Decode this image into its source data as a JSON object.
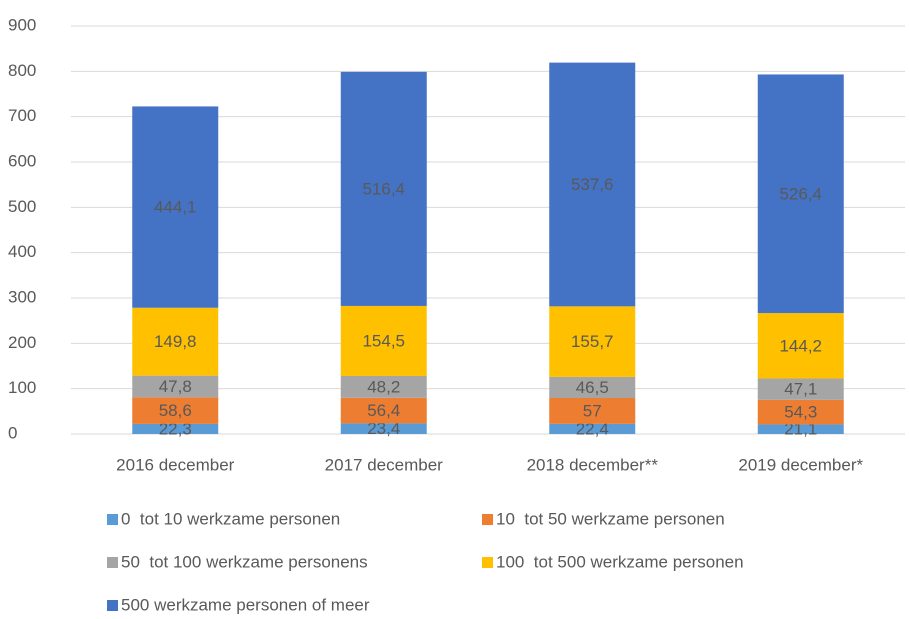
{
  "chart_data": {
    "type": "stacked_bar",
    "categories": [
      "2016 december",
      "2017 december",
      "2018 december**",
      "2019 december*"
    ],
    "series": [
      {
        "name": "0  tot 10 werkzame personen",
        "color": "#5b9bd5",
        "values": [
          22.3,
          23.4,
          22.4,
          21.1
        ],
        "value_labels": [
          "22,3",
          "23,4",
          "22,4",
          "21,1"
        ]
      },
      {
        "name": "10  tot 50 werkzame personen",
        "color": "#ed7d31",
        "values": [
          58.6,
          56.4,
          57,
          54.3
        ],
        "value_labels": [
          "58,6",
          "56,4",
          "57",
          "54,3"
        ]
      },
      {
        "name": "50  tot 100 werkzame personens",
        "color": "#a5a5a5",
        "values": [
          47.8,
          48.2,
          46.5,
          47.1
        ],
        "value_labels": [
          "47,8",
          "48,2",
          "46,5",
          "47,1"
        ]
      },
      {
        "name": "100  tot 500 werkzame personen",
        "color": "#ffc000",
        "values": [
          149.8,
          154.5,
          155.7,
          144.2
        ],
        "value_labels": [
          "149,8",
          "154,5",
          "155,7",
          "144,2"
        ]
      },
      {
        "name": "500 werkzame personen of meer",
        "color": "#4472c4",
        "values": [
          444.1,
          516.4,
          537.6,
          526.4
        ],
        "value_labels": [
          "444,1",
          "516,4",
          "537,6",
          "526,4"
        ]
      }
    ],
    "ylim": [
      0,
      900
    ],
    "yticks": [
      0,
      100,
      200,
      300,
      400,
      500,
      600,
      700,
      800,
      900
    ],
    "grid": true,
    "legend": "bottom"
  }
}
